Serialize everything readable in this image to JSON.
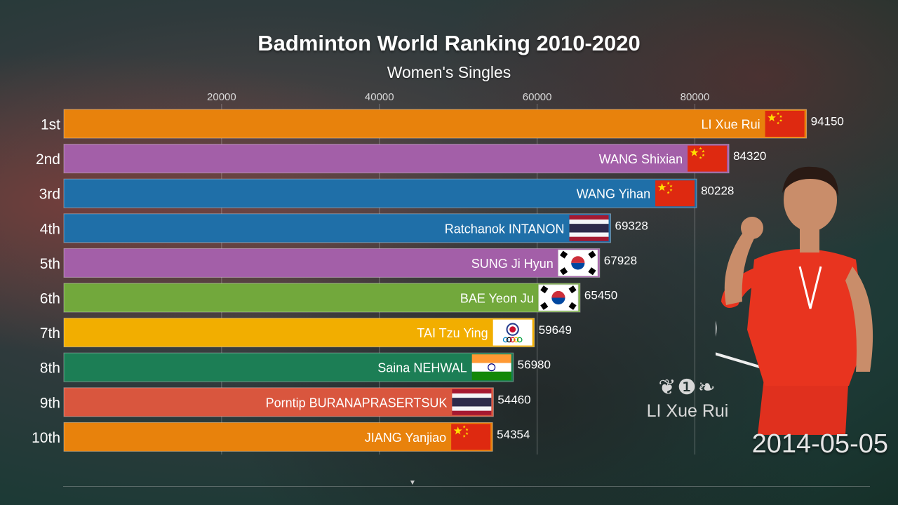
{
  "title": "Badminton World Ranking 2010-2020",
  "subtitle": "Women's Singles",
  "date": "2014-05-05",
  "leader": {
    "badge": "❦❶❧",
    "name": "LI Xue Rui"
  },
  "colors": {
    "orange": "#e8820c",
    "purple": "#a35fa8",
    "blue": "#1f6fa8",
    "green": "#72a83c",
    "gold": "#f2ae00",
    "teal": "#1c7e55",
    "red": "#d9563e"
  },
  "chart_data": {
    "type": "bar",
    "orientation": "horizontal",
    "title": "Badminton World Ranking 2010-2020",
    "subtitle": "Women's Singles",
    "xlim": [
      0,
      94150
    ],
    "xticks": [
      20000,
      40000,
      60000,
      80000
    ],
    "xtick_labels": [
      "20000",
      "40000",
      "60000",
      "80000"
    ],
    "grid": true,
    "categories": [
      "1st",
      "2nd",
      "3rd",
      "4th",
      "5th",
      "6th",
      "7th",
      "8th",
      "9th",
      "10th"
    ],
    "names": [
      "LI Xue Rui",
      "WANG Shixian",
      "WANG Yihan",
      "Ratchanok INTANON",
      "SUNG Ji Hyun",
      "BAE Yeon Ju",
      "TAI Tzu Ying",
      "Saina NEHWAL",
      "Porntip BURANAPRASERTSUK",
      "JIANG Yanjiao"
    ],
    "values": [
      94150,
      84320,
      80228,
      69328,
      67928,
      65450,
      59649,
      56980,
      54460,
      54354
    ],
    "value_labels": [
      "94150",
      "84320",
      "80228",
      "69328",
      "67928",
      "65450",
      "59649",
      "56980",
      "54460",
      "54354"
    ],
    "flags": [
      "china",
      "china",
      "china",
      "thailand",
      "korea",
      "korea",
      "chinese-taipei",
      "india",
      "thailand",
      "china"
    ],
    "bar_colors": [
      "#e8820c",
      "#a35fa8",
      "#1f6fa8",
      "#1f6fa8",
      "#a35fa8",
      "#72a83c",
      "#f2ae00",
      "#1c7e55",
      "#d9563e",
      "#e8820c"
    ]
  }
}
